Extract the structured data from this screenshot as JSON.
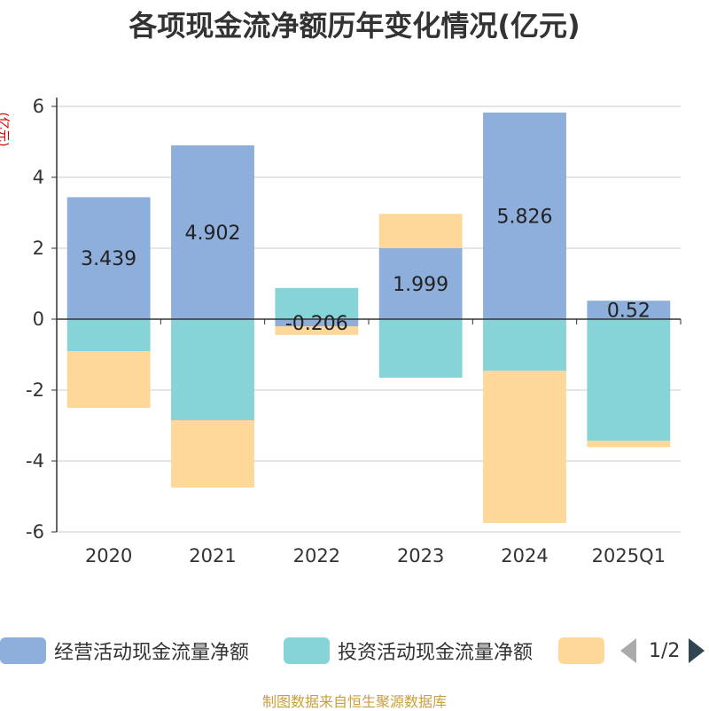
{
  "chart_data": {
    "type": "bar",
    "stacked": true,
    "title": "各项现金流净额历年变化情况(亿元)",
    "ylabel": "(亿元)",
    "categories": [
      "2020",
      "2021",
      "2022",
      "2023",
      "2024",
      "2025Q1"
    ],
    "ylim": [
      -6,
      6
    ],
    "yticks": [
      -6,
      -4,
      -2,
      0,
      2,
      4,
      6
    ],
    "grid": true,
    "legend_position": "bottom",
    "series": [
      {
        "name": "经营活动现金流量净额",
        "color": "#8eaedb",
        "values": [
          3.439,
          4.902,
          -0.206,
          1.999,
          5.826,
          0.52
        ],
        "labels": [
          "3.439",
          "4.902",
          "-0.206",
          "1.999",
          "5.826",
          "0.52"
        ]
      },
      {
        "name": "投资活动现金流量净额",
        "color": "#86d4d7",
        "values": [
          -0.9,
          -2.85,
          0.88,
          -1.65,
          -1.45,
          -3.43
        ],
        "labels": []
      },
      {
        "name": "",
        "color": "#fed898",
        "values": [
          -1.6,
          -1.9,
          -0.24,
          0.97,
          -4.3,
          -0.18
        ],
        "labels": []
      }
    ]
  },
  "legend": {
    "pager_text": "1/2"
  },
  "source": "制图数据来自恒生聚源数据库"
}
